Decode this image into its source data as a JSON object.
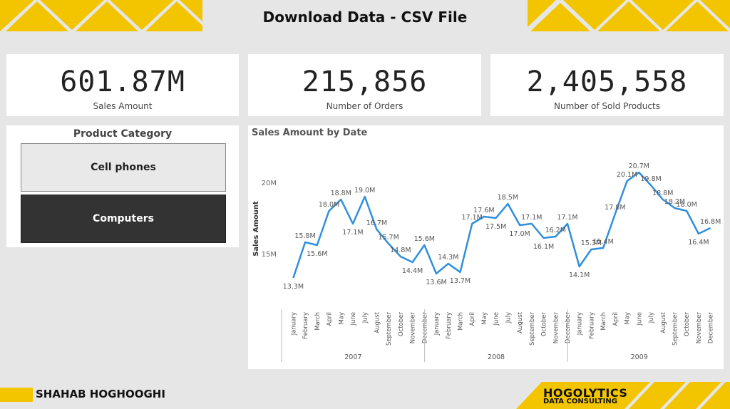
{
  "header": {
    "title": "Download Data - CSV File"
  },
  "kpis": [
    {
      "value": "601.87M",
      "label": "Sales Amount"
    },
    {
      "value": "215,856",
      "label": "Number of Orders"
    },
    {
      "value": "2,405,558",
      "label": "Number of Sold Products"
    }
  ],
  "slicer": {
    "title": "Product Category",
    "items": [
      {
        "label": "Cell phones",
        "selected": false
      },
      {
        "label": "Computers",
        "selected": true
      }
    ]
  },
  "chart": {
    "panel_title": "Sales Amount by Date"
  },
  "chart_data": {
    "type": "line",
    "title": "Sales Amount by Date",
    "ylabel": "Sales Amount",
    "xlabel": "",
    "yticks": [
      "15M",
      "20M"
    ],
    "years": [
      "2007",
      "2008",
      "2009"
    ],
    "months": [
      "January",
      "February",
      "March",
      "April",
      "May",
      "June",
      "July",
      "August",
      "September",
      "October",
      "November",
      "December"
    ],
    "series": [
      {
        "values": [
          13.3,
          15.8,
          15.6,
          18.0,
          18.8,
          17.1,
          19.0,
          16.7,
          15.7,
          14.8,
          14.4,
          15.6,
          13.6,
          14.3,
          13.7,
          17.1,
          17.6,
          17.5,
          18.5,
          17.0,
          17.1,
          16.1,
          16.2,
          17.1,
          14.1,
          15.3,
          15.4,
          17.8,
          20.1,
          20.7,
          19.8,
          18.8,
          18.2,
          18.0,
          16.4,
          16.8
        ]
      }
    ],
    "data_labels": [
      "13.3M",
      "15.8M",
      "15.6M",
      "18.0M",
      "18.8M",
      "17.1M",
      "19.0M",
      "16.7M",
      "15.7M",
      "14.8M",
      "14.4M",
      "15.6M",
      "13.6M",
      "14.3M",
      "13.7M",
      "17.1M",
      "17.6M",
      "17.5M",
      "18.5M",
      "17.0M",
      "17.1M",
      "16.1M",
      "16.2M",
      "17.1M",
      "14.1M",
      "15.3M",
      "15.4M",
      "17.8M",
      "20.1M",
      "20.7M",
      "19.8M",
      "18.8M",
      "18.2M",
      "18.0M",
      "16.4M",
      "16.8M"
    ],
    "line_color": "#2f8fdc",
    "grid": false
  },
  "footer": {
    "author": "SHAHAB HOGHOOGHI",
    "logo_main": "HOGOLYTICS",
    "logo_sub": "DATA CONSULTING"
  },
  "colors": {
    "accent": "#f2c500",
    "background": "#e6e6e6",
    "selected": "#333333"
  }
}
